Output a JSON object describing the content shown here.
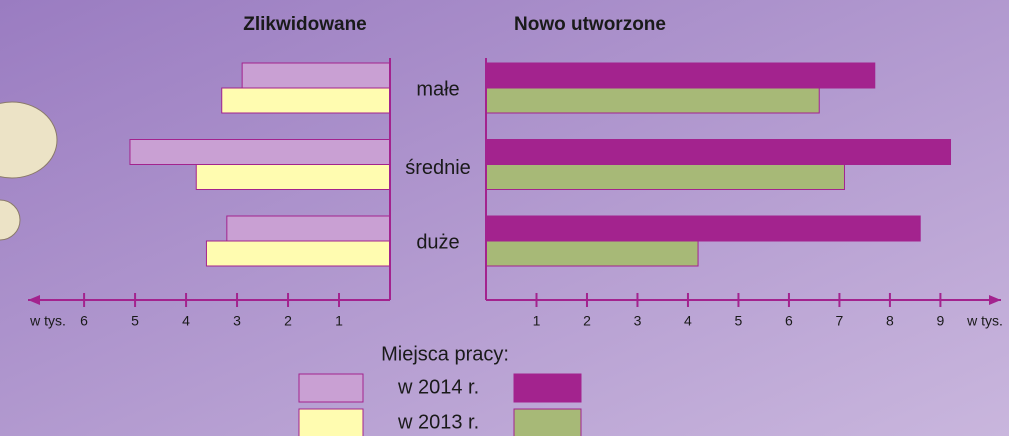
{
  "chart_data": {
    "type": "bar",
    "categories": [
      "małe",
      "średnie",
      "duże"
    ],
    "legend_title": "Miejsca pracy:",
    "panels": [
      {
        "title": "Zlikwidowane",
        "direction": "left",
        "axis_label": "w tys.",
        "xlim": [
          0,
          7.1
        ],
        "xticks": [
          1,
          2,
          3,
          4,
          5,
          6
        ]
      },
      {
        "title": "Nowo utworzone",
        "direction": "right",
        "axis_label": "w tys.",
        "xlim": [
          0,
          10.2
        ],
        "xticks": [
          1,
          2,
          3,
          4,
          5,
          6,
          7,
          8,
          9
        ]
      }
    ],
    "series": [
      {
        "name": "w 2014 r.",
        "colors": [
          "#c9a0d3",
          "#a3238e"
        ],
        "values": [
          [
            2.9,
            5.1,
            3.2
          ],
          [
            7.7,
            9.2,
            8.6
          ]
        ]
      },
      {
        "name": "w 2013 r.",
        "colors": [
          "#fffcb0",
          "#a7b977"
        ],
        "values": [
          [
            3.3,
            3.8,
            3.6
          ],
          [
            6.6,
            7.1,
            4.2
          ]
        ]
      }
    ]
  }
}
